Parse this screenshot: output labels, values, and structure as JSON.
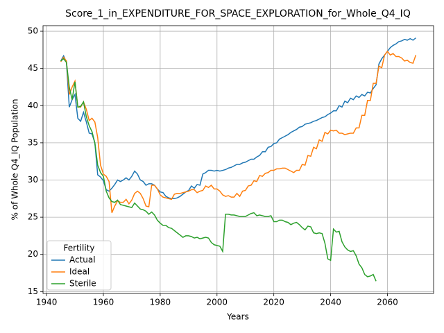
{
  "chart_data": {
    "type": "line",
    "title": "Score_1_in_EXPENDITURE_FOR_SPACE_EXPLORATION_for_Whole_Q4_IQ",
    "x_label": "Years",
    "y_label": "% of Whole Q4_IQ Population",
    "legend_title": "Fertility",
    "legend_loc": "lower left",
    "grid": true,
    "xlim": [
      1938.75,
      2076.25
    ],
    "ylim": [
      14.75,
      50.75
    ],
    "xticks": [
      1940,
      1960,
      1980,
      2000,
      2020,
      2040,
      2060
    ],
    "yticks": [
      15,
      20,
      25,
      30,
      35,
      40,
      45,
      50
    ],
    "x": [
      1945,
      1946,
      1947,
      1948,
      1949,
      1950,
      1951,
      1952,
      1953,
      1954,
      1955,
      1956,
      1957,
      1958,
      1959,
      1960,
      1961,
      1962,
      1963,
      1964,
      1965,
      1966,
      1967,
      1968,
      1969,
      1970,
      1971,
      1972,
      1973,
      1974,
      1975,
      1976,
      1977,
      1978,
      1979,
      1980,
      1981,
      1982,
      1983,
      1984,
      1985,
      1986,
      1987,
      1988,
      1989,
      1990,
      1991,
      1992,
      1993,
      1994,
      1995,
      1996,
      1997,
      1998,
      1999,
      2000,
      2001,
      2002,
      2003,
      2004,
      2005,
      2006,
      2007,
      2008,
      2009,
      2010,
      2011,
      2012,
      2013,
      2014,
      2015,
      2016,
      2017,
      2018,
      2019,
      2020,
      2021,
      2022,
      2023,
      2024,
      2025,
      2026,
      2027,
      2028,
      2029,
      2030,
      2031,
      2032,
      2033,
      2034,
      2035,
      2036,
      2037,
      2038,
      2039,
      2040,
      2041,
      2042,
      2043,
      2044,
      2045,
      2046,
      2047,
      2048,
      2049,
      2050,
      2051,
      2052,
      2053,
      2054,
      2055,
      2056,
      2057,
      2058,
      2059,
      2060,
      2061,
      2062,
      2063,
      2064,
      2065,
      2066,
      2067,
      2068,
      2069,
      2070
    ],
    "series": [
      {
        "name": "Actual",
        "color": "#1f77b4",
        "values": [
          46.0,
          46.7,
          45.8,
          39.8,
          40.8,
          41.5,
          38.3,
          37.9,
          39.1,
          37.8,
          36.3,
          36.2,
          35.0,
          30.7,
          30.4,
          29.9,
          28.7,
          28.5,
          28.9,
          29.4,
          30.0,
          29.8,
          30.0,
          30.3,
          30.0,
          30.5,
          31.2,
          30.8,
          30.0,
          29.8,
          29.3,
          29.5,
          29.5,
          29.3,
          28.8,
          28.4,
          28.3,
          27.8,
          27.6,
          27.5,
          27.5,
          27.6,
          27.8,
          28.1,
          28.4,
          28.6,
          29.2,
          28.9,
          29.4,
          29.3,
          30.8,
          31.0,
          31.3,
          31.3,
          31.2,
          31.3,
          31.2,
          31.3,
          31.4,
          31.6,
          31.7,
          31.9,
          32.1,
          32.1,
          32.3,
          32.4,
          32.6,
          32.8,
          32.8,
          33.1,
          33.3,
          33.8,
          33.8,
          34.4,
          34.5,
          34.9,
          35.0,
          35.5,
          35.7,
          35.9,
          36.1,
          36.4,
          36.6,
          36.8,
          37.1,
          37.2,
          37.5,
          37.6,
          37.7,
          37.9,
          38.0,
          38.2,
          38.4,
          38.5,
          38.8,
          39.0,
          39.3,
          39.3,
          40.0,
          39.8,
          40.6,
          40.4,
          41.0,
          40.8,
          41.3,
          41.1,
          41.5,
          41.3,
          41.8,
          41.7,
          42.3,
          42.8,
          45.6,
          46.3,
          46.8,
          47.3,
          47.8,
          48.1,
          48.3,
          48.6,
          48.7,
          48.9,
          48.8,
          49.0,
          48.8,
          49.1
        ]
      },
      {
        "name": "Ideal",
        "color": "#ff7f0e",
        "values": [
          45.9,
          46.5,
          46.0,
          41.5,
          42.5,
          43.3,
          39.8,
          39.8,
          40.5,
          39.5,
          38.0,
          38.3,
          37.8,
          35.7,
          32.0,
          30.8,
          30.5,
          29.8,
          25.6,
          26.5,
          27.2,
          27.0,
          27.0,
          27.4,
          26.8,
          27.3,
          28.2,
          28.5,
          28.2,
          27.5,
          26.5,
          26.4,
          29.3,
          29.3,
          28.8,
          28.0,
          27.7,
          27.6,
          27.5,
          27.4,
          28.1,
          28.2,
          28.2,
          28.3,
          28.4,
          28.5,
          28.7,
          28.7,
          28.3,
          28.5,
          28.6,
          29.2,
          29.0,
          29.3,
          28.8,
          28.8,
          28.5,
          28.0,
          27.8,
          27.9,
          27.7,
          27.7,
          28.2,
          27.8,
          28.5,
          28.6,
          29.2,
          29.3,
          29.9,
          29.8,
          30.6,
          30.5,
          30.9,
          31.0,
          31.3,
          31.3,
          31.5,
          31.5,
          31.6,
          31.6,
          31.4,
          31.2,
          31.0,
          31.3,
          31.3,
          32.1,
          32.0,
          33.3,
          33.2,
          34.4,
          34.2,
          35.4,
          35.2,
          36.4,
          36.2,
          36.7,
          36.6,
          36.7,
          36.3,
          36.3,
          36.1,
          36.2,
          36.3,
          36.3,
          37.0,
          37.0,
          38.7,
          38.7,
          40.7,
          40.7,
          43.0,
          43.0,
          45.3,
          45.1,
          46.8,
          47.3,
          46.8,
          47.0,
          46.6,
          46.6,
          46.4,
          46.0,
          46.1,
          45.8,
          45.7,
          46.8
        ]
      },
      {
        "name": "Sterile",
        "color": "#2ca02c",
        "values": [
          46.0,
          46.3,
          45.8,
          42.5,
          40.8,
          43.2,
          39.8,
          39.9,
          40.5,
          38.5,
          37.3,
          36.5,
          35.0,
          32.0,
          31.0,
          30.5,
          28.5,
          27.6,
          27.1,
          27.0,
          27.3,
          26.7,
          26.6,
          26.5,
          26.4,
          26.3,
          26.9,
          26.5,
          26.1,
          26.0,
          25.8,
          25.4,
          25.7,
          25.3,
          24.6,
          24.2,
          23.9,
          23.9,
          23.6,
          23.5,
          23.2,
          22.9,
          22.6,
          22.3,
          22.5,
          22.5,
          22.4,
          22.2,
          22.3,
          22.1,
          22.2,
          22.3,
          22.2,
          21.6,
          21.3,
          21.2,
          21.1,
          20.4,
          25.4,
          25.4,
          25.3,
          25.3,
          25.2,
          25.1,
          25.1,
          25.1,
          25.3,
          25.5,
          25.6,
          25.2,
          25.3,
          25.2,
          25.1,
          25.1,
          25.2,
          24.4,
          24.4,
          24.6,
          24.6,
          24.4,
          24.3,
          24.0,
          24.2,
          24.3,
          24.0,
          23.6,
          23.3,
          23.8,
          23.7,
          22.9,
          22.8,
          22.9,
          22.8,
          21.5,
          19.4,
          19.2,
          23.4,
          23.0,
          23.1,
          21.7,
          21.0,
          20.6,
          20.4,
          20.5,
          19.8,
          18.7,
          18.2,
          17.3,
          17.0,
          17.1,
          17.3,
          16.4,
          null,
          null,
          null,
          null,
          null,
          null,
          null,
          null,
          null,
          null,
          null,
          null,
          null,
          null
        ]
      }
    ]
  }
}
